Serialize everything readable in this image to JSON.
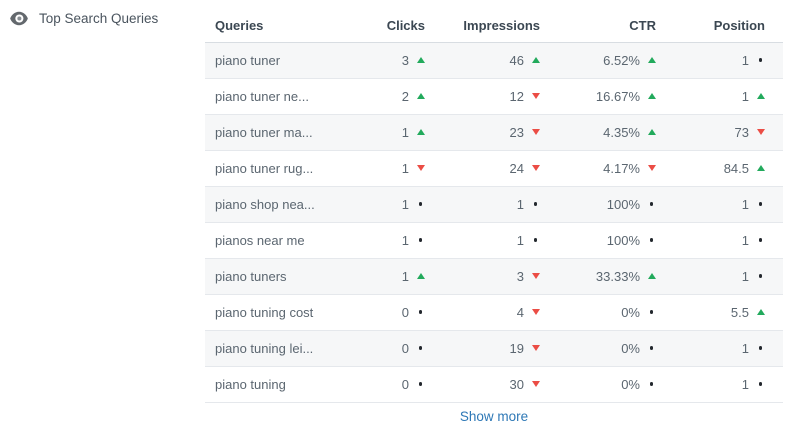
{
  "widget": {
    "title": "Top Search Queries",
    "icon": "eye-icon"
  },
  "table": {
    "columns": [
      "Queries",
      "Clicks",
      "Impressions",
      "CTR",
      "Position"
    ],
    "rows": [
      {
        "query": "piano tuner",
        "clicks": {
          "value": "3",
          "trend": "up"
        },
        "impressions": {
          "value": "46",
          "trend": "up"
        },
        "ctr": {
          "value": "6.52%",
          "trend": "up"
        },
        "position": {
          "value": "1",
          "trend": "neutral"
        }
      },
      {
        "query": "piano tuner ne...",
        "clicks": {
          "value": "2",
          "trend": "up"
        },
        "impressions": {
          "value": "12",
          "trend": "down"
        },
        "ctr": {
          "value": "16.67%",
          "trend": "up"
        },
        "position": {
          "value": "1",
          "trend": "up"
        }
      },
      {
        "query": "piano tuner ma...",
        "clicks": {
          "value": "1",
          "trend": "up"
        },
        "impressions": {
          "value": "23",
          "trend": "down"
        },
        "ctr": {
          "value": "4.35%",
          "trend": "up"
        },
        "position": {
          "value": "73",
          "trend": "down"
        }
      },
      {
        "query": "piano tuner rug...",
        "clicks": {
          "value": "1",
          "trend": "down"
        },
        "impressions": {
          "value": "24",
          "trend": "down"
        },
        "ctr": {
          "value": "4.17%",
          "trend": "down"
        },
        "position": {
          "value": "84.5",
          "trend": "up"
        }
      },
      {
        "query": "piano shop nea...",
        "clicks": {
          "value": "1",
          "trend": "neutral"
        },
        "impressions": {
          "value": "1",
          "trend": "neutral"
        },
        "ctr": {
          "value": "100%",
          "trend": "neutral"
        },
        "position": {
          "value": "1",
          "trend": "neutral"
        }
      },
      {
        "query": "pianos near me",
        "clicks": {
          "value": "1",
          "trend": "neutral"
        },
        "impressions": {
          "value": "1",
          "trend": "neutral"
        },
        "ctr": {
          "value": "100%",
          "trend": "neutral"
        },
        "position": {
          "value": "1",
          "trend": "neutral"
        }
      },
      {
        "query": "piano tuners",
        "clicks": {
          "value": "1",
          "trend": "up"
        },
        "impressions": {
          "value": "3",
          "trend": "down"
        },
        "ctr": {
          "value": "33.33%",
          "trend": "up"
        },
        "position": {
          "value": "1",
          "trend": "neutral"
        }
      },
      {
        "query": "piano tuning cost",
        "clicks": {
          "value": "0",
          "trend": "neutral"
        },
        "impressions": {
          "value": "4",
          "trend": "down"
        },
        "ctr": {
          "value": "0%",
          "trend": "neutral"
        },
        "position": {
          "value": "5.5",
          "trend": "up"
        }
      },
      {
        "query": "piano tuning lei...",
        "clicks": {
          "value": "0",
          "trend": "neutral"
        },
        "impressions": {
          "value": "19",
          "trend": "down"
        },
        "ctr": {
          "value": "0%",
          "trend": "neutral"
        },
        "position": {
          "value": "1",
          "trend": "neutral"
        }
      },
      {
        "query": "piano tuning",
        "clicks": {
          "value": "0",
          "trend": "neutral"
        },
        "impressions": {
          "value": "30",
          "trend": "down"
        },
        "ctr": {
          "value": "0%",
          "trend": "neutral"
        },
        "position": {
          "value": "1",
          "trend": "neutral"
        }
      }
    ],
    "show_more_label": "Show more"
  },
  "colors": {
    "up": "#22aa5c",
    "down": "#eb4d45",
    "neutral": "#23282e",
    "link": "#2e78b6",
    "stripe": "#f6f7f8",
    "border": "#e5e8ec"
  }
}
